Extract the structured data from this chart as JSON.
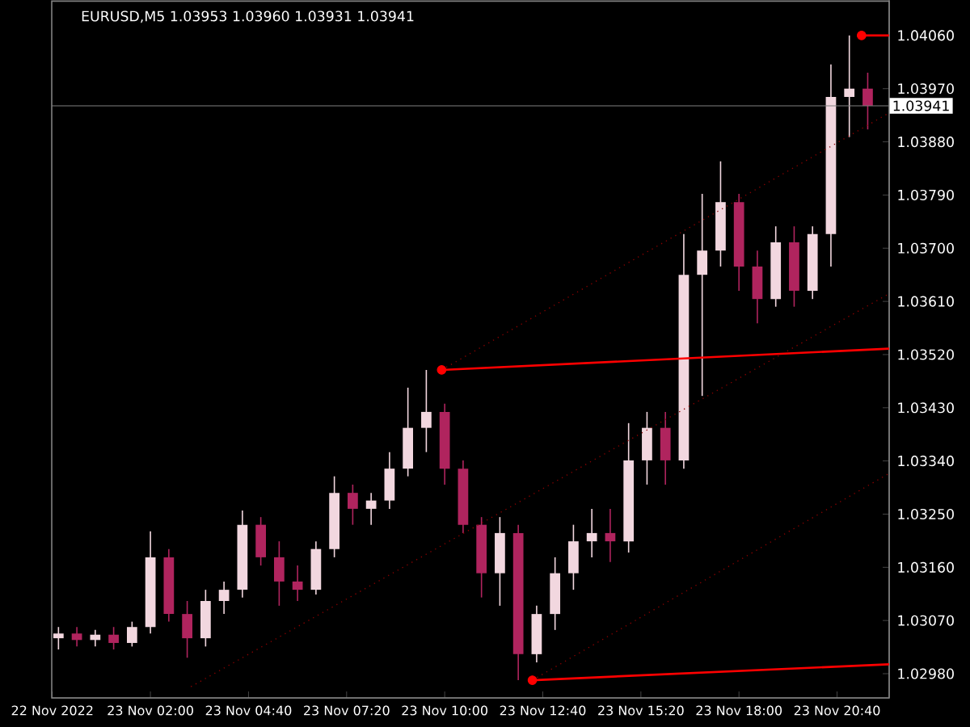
{
  "chart_data": {
    "type": "candlestick",
    "title": "EURUSD,M5  1.03953 1.03960 1.03931 1.03941",
    "xlim": [
      "2022-11-22T23:19",
      "2022-11-23T22:05"
    ],
    "ylim": [
      1.02939,
      1.0412
    ],
    "xticks": [
      {
        "value": "2022-11-22T23:20",
        "label": "22 Nov 2022"
      },
      {
        "value": "2022-11-23T02:00",
        "label": "23 Nov 02:00"
      },
      {
        "value": "2022-11-23T04:40",
        "label": "23 Nov 04:40"
      },
      {
        "value": "2022-11-23T07:20",
        "label": "23 Nov 07:20"
      },
      {
        "value": "2022-11-23T10:00",
        "label": "23 Nov 10:00"
      },
      {
        "value": "2022-11-23T12:40",
        "label": "23 Nov 12:40"
      },
      {
        "value": "2022-11-23T15:20",
        "label": "23 Nov 15:20"
      },
      {
        "value": "2022-11-23T18:00",
        "label": "23 Nov 18:00"
      },
      {
        "value": "2022-11-23T20:40",
        "label": "23 Nov 20:40"
      }
    ],
    "yticks": [
      {
        "value": 1.0298,
        "label": "1.02980"
      },
      {
        "value": 1.0307,
        "label": "1.03070"
      },
      {
        "value": 1.0316,
        "label": "1.03160"
      },
      {
        "value": 1.0325,
        "label": "1.03250"
      },
      {
        "value": 1.0334,
        "label": "1.03340"
      },
      {
        "value": 1.0343,
        "label": "1.03430"
      },
      {
        "value": 1.0352,
        "label": "1.03520"
      },
      {
        "value": 1.0361,
        "label": "1.03610"
      },
      {
        "value": 1.037,
        "label": "1.03700"
      },
      {
        "value": 1.0379,
        "label": "1.03790"
      },
      {
        "value": 1.0388,
        "label": "1.03880"
      },
      {
        "value": 1.0397,
        "label": "1.03970"
      },
      {
        "value": 1.0406,
        "label": "1.04060"
      }
    ],
    "ref_lines": [
      {
        "axis": "y",
        "value": 1.03941,
        "label": "1.03941",
        "color": "#808080"
      }
    ],
    "x": [
      "2022-11-22T23:30",
      "2022-11-23T00:00",
      "2022-11-23T00:30",
      "2022-11-23T01:00",
      "2022-11-23T01:30",
      "2022-11-23T02:00",
      "2022-11-23T02:30",
      "2022-11-23T03:00",
      "2022-11-23T03:30",
      "2022-11-23T04:00",
      "2022-11-23T04:30",
      "2022-11-23T05:00",
      "2022-11-23T05:30",
      "2022-11-23T06:00",
      "2022-11-23T06:30",
      "2022-11-23T07:00",
      "2022-11-23T07:30",
      "2022-11-23T08:00",
      "2022-11-23T08:30",
      "2022-11-23T09:00",
      "2022-11-23T09:30",
      "2022-11-23T10:00",
      "2022-11-23T10:30",
      "2022-11-23T11:00",
      "2022-11-23T11:30",
      "2022-11-23T12:00",
      "2022-11-23T12:30",
      "2022-11-23T13:00",
      "2022-11-23T13:30",
      "2022-11-23T14:00",
      "2022-11-23T14:30",
      "2022-11-23T15:00",
      "2022-11-23T15:30",
      "2022-11-23T16:00",
      "2022-11-23T16:30",
      "2022-11-23T17:00",
      "2022-11-23T17:30",
      "2022-11-23T18:00",
      "2022-11-23T18:30",
      "2022-11-23T19:00",
      "2022-11-23T19:30",
      "2022-11-23T20:00",
      "2022-11-23T20:30",
      "2022-11-23T21:00",
      "2022-11-23T21:30"
    ],
    "ohlc": [
      [
        1.0304,
        1.03059,
        1.03021,
        1.03048
      ],
      [
        1.03048,
        1.03059,
        1.03026,
        1.03037
      ],
      [
        1.03037,
        1.03054,
        1.03026,
        1.03046
      ],
      [
        1.03046,
        1.03059,
        1.03021,
        1.03032
      ],
      [
        1.03032,
        1.03068,
        1.03026,
        1.03059
      ],
      [
        1.03059,
        1.03221,
        1.03048,
        1.03177
      ],
      [
        1.03177,
        1.03191,
        1.03068,
        1.03081
      ],
      [
        1.03081,
        1.03103,
        1.03007,
        1.0304
      ],
      [
        1.0304,
        1.03122,
        1.03026,
        1.03103
      ],
      [
        1.03103,
        1.03136,
        1.03081,
        1.03122
      ],
      [
        1.03122,
        1.03256,
        1.03109,
        1.03232
      ],
      [
        1.03232,
        1.03245,
        1.03163,
        1.03177
      ],
      [
        1.03177,
        1.03204,
        1.03095,
        1.03136
      ],
      [
        1.03136,
        1.03163,
        1.03103,
        1.03122
      ],
      [
        1.03122,
        1.03204,
        1.03114,
        1.03191
      ],
      [
        1.03191,
        1.03314,
        1.03177,
        1.03286
      ],
      [
        1.03286,
        1.033,
        1.03232,
        1.03259
      ],
      [
        1.03259,
        1.03286,
        1.03232,
        1.03273
      ],
      [
        1.03273,
        1.03355,
        1.03259,
        1.03327
      ],
      [
        1.03327,
        1.03464,
        1.03314,
        1.03396
      ],
      [
        1.03396,
        1.03494,
        1.03355,
        1.03423
      ],
      [
        1.03423,
        1.03437,
        1.033,
        1.03327
      ],
      [
        1.03327,
        1.03341,
        1.03218,
        1.03232
      ],
      [
        1.03232,
        1.03245,
        1.03109,
        1.0315
      ],
      [
        1.0315,
        1.03245,
        1.03095,
        1.03218
      ],
      [
        1.03218,
        1.03232,
        1.02969,
        1.03013
      ],
      [
        1.03013,
        1.03095,
        1.02999,
        1.03081
      ],
      [
        1.03081,
        1.03177,
        1.03054,
        1.0315
      ],
      [
        1.0315,
        1.03232,
        1.03122,
        1.03204
      ],
      [
        1.03204,
        1.03259,
        1.03177,
        1.03218
      ],
      [
        1.03218,
        1.03259,
        1.03169,
        1.03204
      ],
      [
        1.03204,
        1.03404,
        1.03185,
        1.03341
      ],
      [
        1.03341,
        1.03423,
        1.033,
        1.03396
      ],
      [
        1.03396,
        1.03423,
        1.033,
        1.03341
      ],
      [
        1.03341,
        1.03724,
        1.03327,
        1.03655
      ],
      [
        1.03655,
        1.03792,
        1.0345,
        1.03696
      ],
      [
        1.03696,
        1.03847,
        1.03669,
        1.03778
      ],
      [
        1.03778,
        1.03792,
        1.03628,
        1.03669
      ],
      [
        1.03669,
        1.03696,
        1.03573,
        1.03614
      ],
      [
        1.03614,
        1.03737,
        1.03601,
        1.0371
      ],
      [
        1.0371,
        1.03737,
        1.03601,
        1.03628
      ],
      [
        1.03628,
        1.03737,
        1.03614,
        1.03724
      ],
      [
        1.03724,
        1.04011,
        1.03669,
        1.03956
      ],
      [
        1.03956,
        1.0406,
        1.03888,
        1.0397
      ],
      [
        1.0397,
        1.03997,
        1.03901,
        1.03941
      ]
    ],
    "colors": [
      "#f2d7df",
      "#b0245e",
      "#f2d7df",
      "#b0245e",
      "#f2d7df",
      "#f2d7df",
      "#b0245e",
      "#b0245e",
      "#f2d7df",
      "#f2d7df",
      "#f2d7df",
      "#b0245e",
      "#b0245e",
      "#b0245e",
      "#f2d7df",
      "#f2d7df",
      "#b0245e",
      "#f2d7df",
      "#f2d7df",
      "#f2d7df",
      "#f2d7df",
      "#b0245e",
      "#b0245e",
      "#b0245e",
      "#f2d7df",
      "#b0245e",
      "#f2d7df",
      "#f2d7df",
      "#f2d7df",
      "#f2d7df",
      "#b0245e",
      "#f2d7df",
      "#f2d7df",
      "#b0245e",
      "#f2d7df",
      "#f2d7df",
      "#f2d7df",
      "#b0245e",
      "#b0245e",
      "#f2d7df",
      "#b0245e",
      "#f2d7df",
      "#f2d7df",
      "#f2d7df",
      "#b0245e"
    ],
    "series": [
      {
        "type": "line",
        "color": "#8b0000",
        "line_style": "dotted",
        "x": [
          "2022-11-23T09:55",
          "2022-11-23T22:05"
        ],
        "values": [
          1.03494,
          1.03929
        ]
      },
      {
        "type": "line",
        "color": "#8b0000",
        "line_style": "dotted",
        "x": [
          "2022-11-23T03:06",
          "2022-11-23T22:05"
        ],
        "values": [
          1.02958,
          1.03623
        ]
      },
      {
        "type": "line",
        "color": "#8b0000",
        "line_style": "dotted",
        "x": [
          "2022-11-23T12:23",
          "2022-11-23T22:05"
        ],
        "values": [
          1.02969,
          1.03319
        ]
      },
      {
        "type": "line",
        "color": "#ff0000",
        "line_style": "solid",
        "x": [
          "2022-11-23T09:55",
          "2022-11-23T22:05"
        ],
        "values": [
          1.03494,
          1.0353
        ]
      },
      {
        "type": "line",
        "color": "#ff0000",
        "line_style": "solid",
        "x": [
          "2022-11-23T12:23",
          "2022-11-23T22:05"
        ],
        "values": [
          1.02969,
          1.02996
        ]
      },
      {
        "type": "line",
        "color": "#ff0000",
        "line_style": "solid",
        "x": [
          "2022-11-23T21:20",
          "2022-11-23T22:05"
        ],
        "values": [
          1.0406,
          1.0406
        ]
      },
      {
        "type": "scatter",
        "color": "#ff0000",
        "x": [
          "2022-11-23T09:55",
          "2022-11-23T12:23",
          "2022-11-23T21:20"
        ],
        "values": [
          1.03494,
          1.02969,
          1.0406
        ]
      }
    ]
  }
}
